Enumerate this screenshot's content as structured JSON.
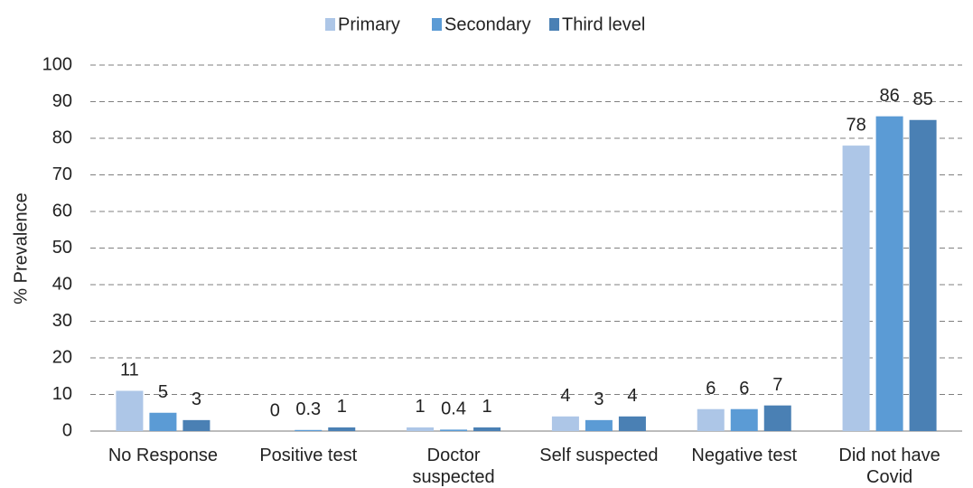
{
  "chart_data": {
    "type": "bar",
    "y_axis_label": "% Prevalence",
    "categories": [
      "No Response",
      "Positive test",
      "Doctor suspected",
      "Self suspected",
      "Negative test",
      "Did not have Covid"
    ],
    "series": [
      {
        "name": "Primary",
        "color": "#adc6e7",
        "values": [
          11,
          0,
          1,
          4,
          6,
          78
        ]
      },
      {
        "name": "Secondary",
        "color": "#5b9bd5",
        "values": [
          5,
          0.3,
          0.4,
          3,
          6,
          86
        ]
      },
      {
        "name": "Third level",
        "color": "#4a80b4",
        "values": [
          3,
          1,
          1,
          4,
          7,
          85
        ]
      }
    ],
    "ylim": [
      0,
      100
    ],
    "yticks": [
      0,
      10,
      20,
      30,
      40,
      50,
      60,
      70,
      80,
      90,
      100
    ],
    "grid": true,
    "legend": "top"
  }
}
